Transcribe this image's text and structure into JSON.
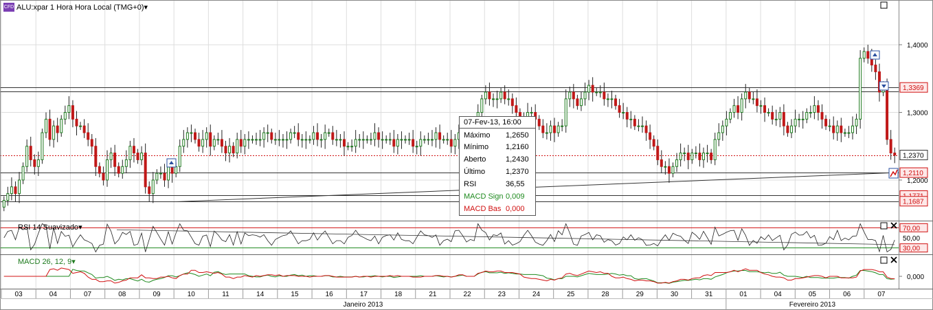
{
  "header": {
    "badge": "CFD",
    "instrument": "ALU:xpar 1 Hora Hora Local (TMG+0)",
    "dropdown_arrow": "▾"
  },
  "tooltip": {
    "datetime": "07-Fev-13, 16:00",
    "rows": [
      {
        "label": "Máximo",
        "value": "1,2650",
        "color": "#000000"
      },
      {
        "label": "Mínimo",
        "value": "1,2160",
        "color": "#000000"
      },
      {
        "label": "Aberto",
        "value": "1,2430",
        "color": "#000000"
      },
      {
        "label": "Último",
        "value": "1,2370",
        "color": "#000000"
      },
      {
        "label": "RSI",
        "value": "36,55",
        "color": "#000000"
      },
      {
        "label": "MACD Sign",
        "value": "0,009",
        "color": "#1e8a1e"
      },
      {
        "label": "MACD Bas",
        "value": "0,000",
        "color": "#d01010"
      }
    ]
  },
  "panels": {
    "rsi_title": "RSI 14 Suavizado",
    "macd_title": "MACD 26, 12, 9"
  },
  "colors": {
    "up": "#1e7a1e",
    "down": "#c01818",
    "grid": "#dddddd",
    "last_price_line": "#d01010",
    "rsi_bands": "#d01010",
    "rsi_mid": "#1e8a1e",
    "macd_signal": "#1e8a1e",
    "macd_base": "#d01010"
  },
  "chart_data": [
    {
      "type": "candlestick",
      "title": "ALU:xpar 1 Hora Hora Local (TMG+0)",
      "ylim": [
        1.14,
        1.46
      ],
      "yticks": [
        "1,4000",
        "1,3000",
        "1,2000"
      ],
      "ytick_values": [
        1.4,
        1.3,
        1.2
      ],
      "price_labels": [
        {
          "text": "1,3369",
          "value": 1.3369,
          "style": "red"
        },
        {
          "text": "1,2370",
          "value": 1.237,
          "style": "black"
        },
        {
          "text": "1,2110",
          "value": 1.211,
          "style": "red"
        },
        {
          "text": "1,1771",
          "value": 1.1771,
          "style": "red"
        },
        {
          "text": "1,1687",
          "value": 1.1687,
          "style": "red"
        }
      ],
      "horizontal_levels": [
        1.3369,
        1.3312,
        1.211,
        1.1771,
        1.1687
      ],
      "last_price": 1.237,
      "trendline": {
        "from": {
          "day": "10",
          "price": 1.168
        },
        "to": {
          "day": "07",
          "price": 1.211
        }
      },
      "days": [
        "03",
        "04",
        "07",
        "08",
        "09",
        "10",
        "11",
        "14",
        "15",
        "16",
        "17",
        "18",
        "21",
        "22",
        "23",
        "24",
        "25",
        "28",
        "29",
        "30",
        "31",
        "01",
        "04",
        "05",
        "06",
        "07"
      ],
      "months": [
        "Janeiro 2013",
        "Fevereiro 2013"
      ],
      "closes": [
        1.17,
        1.18,
        1.19,
        1.18,
        1.2,
        1.22,
        1.25,
        1.23,
        1.22,
        1.23,
        1.27,
        1.29,
        1.26,
        1.28,
        1.27,
        1.29,
        1.3,
        1.31,
        1.29,
        1.28,
        1.28,
        1.27,
        1.26,
        1.25,
        1.22,
        1.21,
        1.2,
        1.23,
        1.24,
        1.22,
        1.21,
        1.22,
        1.23,
        1.25,
        1.24,
        1.23,
        1.24,
        1.19,
        1.18,
        1.2,
        1.21,
        1.21,
        1.2,
        1.22,
        1.21,
        1.22,
        1.25,
        1.26,
        1.27,
        1.27,
        1.26,
        1.25,
        1.26,
        1.27,
        1.25,
        1.26,
        1.26,
        1.25,
        1.24,
        1.25,
        1.24,
        1.26,
        1.25,
        1.26,
        1.26,
        1.26,
        1.26,
        1.26,
        1.27,
        1.27,
        1.26,
        1.26,
        1.26,
        1.26,
        1.26,
        1.27,
        1.27,
        1.26,
        1.26,
        1.26,
        1.26,
        1.27,
        1.26,
        1.26,
        1.27,
        1.27,
        1.26,
        1.26,
        1.26,
        1.25,
        1.25,
        1.25,
        1.26,
        1.26,
        1.26,
        1.26,
        1.26,
        1.27,
        1.26,
        1.26,
        1.26,
        1.26,
        1.25,
        1.26,
        1.26,
        1.26,
        1.26,
        1.25,
        1.25,
        1.26,
        1.26,
        1.26,
        1.26,
        1.27,
        1.26,
        1.26,
        1.26,
        1.25,
        1.26,
        1.27,
        1.27,
        1.26,
        1.26,
        1.26,
        1.3,
        1.32,
        1.33,
        1.32,
        1.32,
        1.32,
        1.33,
        1.32,
        1.32,
        1.31,
        1.3,
        1.29,
        1.29,
        1.3,
        1.3,
        1.29,
        1.28,
        1.27,
        1.27,
        1.28,
        1.27,
        1.28,
        1.28,
        1.32,
        1.33,
        1.32,
        1.31,
        1.32,
        1.33,
        1.34,
        1.33,
        1.33,
        1.33,
        1.32,
        1.32,
        1.32,
        1.31,
        1.3,
        1.3,
        1.29,
        1.29,
        1.28,
        1.28,
        1.28,
        1.27,
        1.26,
        1.25,
        1.23,
        1.22,
        1.22,
        1.21,
        1.22,
        1.23,
        1.24,
        1.24,
        1.23,
        1.24,
        1.24,
        1.23,
        1.24,
        1.24,
        1.23,
        1.26,
        1.27,
        1.28,
        1.29,
        1.3,
        1.31,
        1.3,
        1.32,
        1.33,
        1.32,
        1.32,
        1.31,
        1.31,
        1.3,
        1.3,
        1.29,
        1.29,
        1.3,
        1.28,
        1.27,
        1.28,
        1.29,
        1.29,
        1.29,
        1.3,
        1.3,
        1.31,
        1.3,
        1.29,
        1.28,
        1.28,
        1.27,
        1.28,
        1.27,
        1.27,
        1.27,
        1.28,
        1.29,
        1.38,
        1.39,
        1.38,
        1.37,
        1.36,
        1.33,
        1.34,
        1.26,
        1.24,
        1.237
      ],
      "rsi": {
        "title": "RSI 14 Suavizado",
        "ylim": [
          20,
          80
        ],
        "levels": [
          70,
          30
        ],
        "level_labels": [
          "70,00",
          "50,00",
          "30,00"
        ],
        "last": 36.55
      },
      "macd": {
        "title": "MACD 26, 12, 9",
        "ytick": "0,000",
        "signal_last": 0.009,
        "base_last": 0.0
      }
    }
  ]
}
